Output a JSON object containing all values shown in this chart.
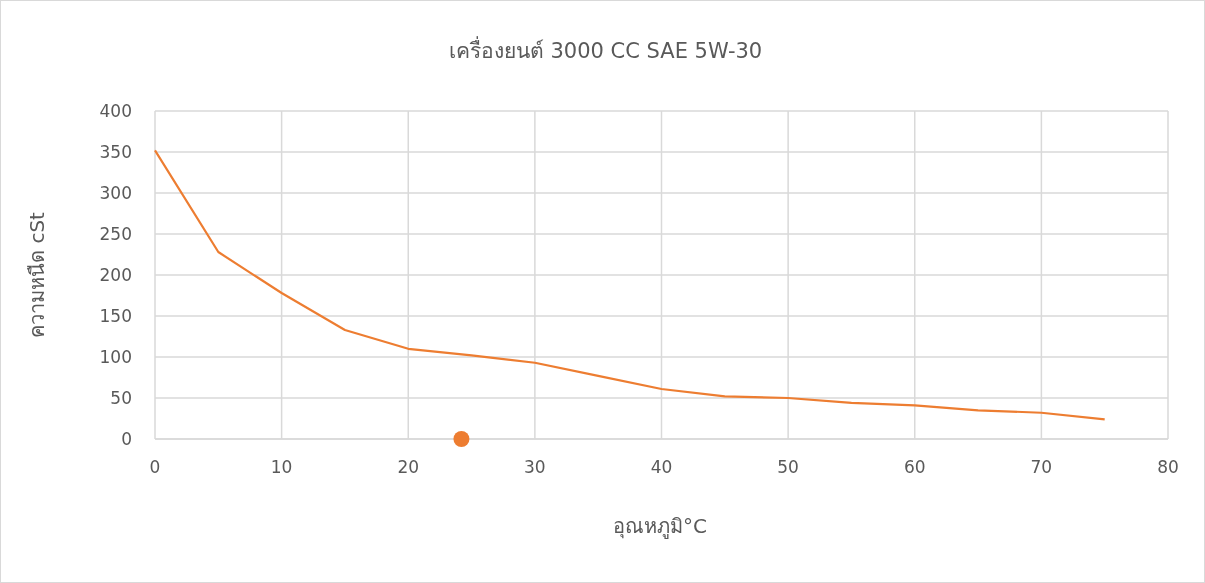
{
  "chart_data": {
    "type": "line",
    "title": "เครื่องยนต์ 3000 CC SAE 5W-30",
    "xlabel": "อุณหภูมิ°C",
    "ylabel": "ความหนืด cSt",
    "xlim": [
      0,
      80
    ],
    "xticks": [
      0,
      10,
      20,
      30,
      40,
      50,
      60,
      70,
      80
    ],
    "ylim": [
      0,
      400
    ],
    "yticks": [
      0,
      50,
      100,
      150,
      200,
      250,
      300,
      350,
      400
    ],
    "grid": true,
    "series": [
      {
        "color": "#ed7d31",
        "x": [
          0,
          5,
          10,
          15,
          20,
          25,
          30,
          35,
          40,
          45,
          50,
          55,
          60,
          65,
          70,
          75
        ],
        "values": [
          352,
          228,
          178,
          133,
          110,
          102,
          93,
          77,
          61,
          52,
          50,
          44,
          41,
          35,
          32,
          24
        ]
      },
      {
        "type": "scatter",
        "color": "#ed7d31",
        "marker": "circle",
        "x": [
          24.2
        ],
        "values": [
          0
        ]
      }
    ]
  }
}
